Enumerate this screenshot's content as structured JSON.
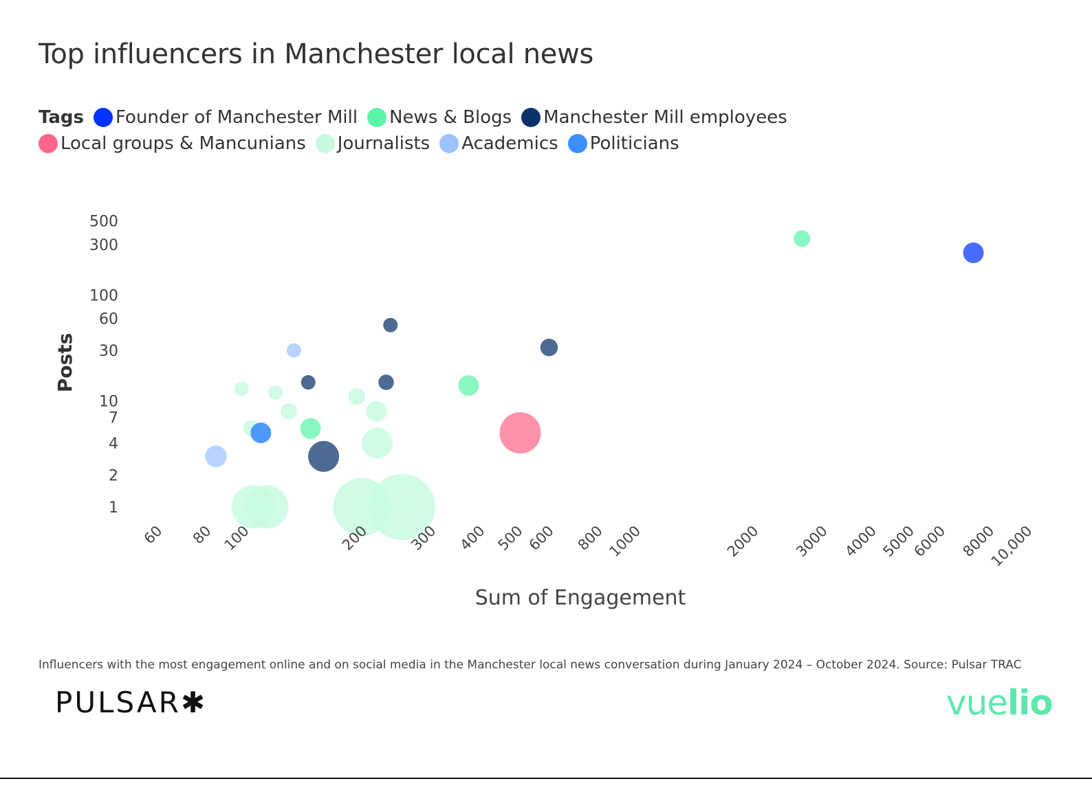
{
  "chart_data": {
    "type": "scatter",
    "title": "Top influencers in Manchester local news",
    "xlabel": "Sum of Engagement",
    "ylabel": "Posts",
    "x_scale": "log",
    "y_scale": "log",
    "xlim": [
      50,
      10000
    ],
    "ylim": [
      0.8,
      600
    ],
    "x_ticks": [
      60,
      80,
      100,
      200,
      300,
      400,
      500,
      600,
      800,
      1000,
      2000,
      3000,
      4000,
      5000,
      6000,
      8000,
      10000
    ],
    "x_tick_labels": [
      "60",
      "80",
      "100",
      "200",
      "300",
      "400",
      "500",
      "600",
      "800",
      "1000",
      "2000",
      "3000",
      "4000",
      "5000",
      "6000",
      "8000",
      "10,000"
    ],
    "y_ticks": [
      1,
      2,
      4,
      7,
      10,
      30,
      60,
      100,
      300,
      500
    ],
    "y_tick_labels": [
      "1",
      "2",
      "4",
      "7",
      "10",
      "30",
      "60",
      "100",
      "300",
      "500"
    ],
    "legend_title": "Tags",
    "legend_position": "top-left",
    "grid": false,
    "series": [
      {
        "name": "Founder of Manchester Mill",
        "color": "#0033ff",
        "points": [
          {
            "x": 7400,
            "y": 250,
            "size": 1.0
          }
        ]
      },
      {
        "name": "News & Blogs",
        "color": "#5cf5a8",
        "points": [
          {
            "x": 2700,
            "y": 340,
            "size": 0.8
          },
          {
            "x": 380,
            "y": 14,
            "size": 1.0
          },
          {
            "x": 150,
            "y": 5.5,
            "size": 1.0
          }
        ]
      },
      {
        "name": "Manchester Mill employees",
        "color": "#09316a",
        "points": [
          {
            "x": 240,
            "y": 52,
            "size": 0.7
          },
          {
            "x": 610,
            "y": 32,
            "size": 0.85
          },
          {
            "x": 148,
            "y": 15,
            "size": 0.7
          },
          {
            "x": 234,
            "y": 15,
            "size": 0.75
          },
          {
            "x": 162,
            "y": 3,
            "size": 1.5
          }
        ]
      },
      {
        "name": "Local groups & Mancunians",
        "color": "#ff6688",
        "points": [
          {
            "x": 515,
            "y": 5,
            "size": 2.0
          }
        ]
      },
      {
        "name": "Journalists",
        "color": "#c8fae0",
        "points": [
          {
            "x": 100,
            "y": 13,
            "size": 0.7
          },
          {
            "x": 122,
            "y": 12,
            "size": 0.7
          },
          {
            "x": 197,
            "y": 11,
            "size": 0.8
          },
          {
            "x": 132,
            "y": 8,
            "size": 0.8
          },
          {
            "x": 221,
            "y": 8,
            "size": 1.0
          },
          {
            "x": 106,
            "y": 5.5,
            "size": 0.8
          },
          {
            "x": 222,
            "y": 4,
            "size": 1.5
          },
          {
            "x": 107,
            "y": 1,
            "size": 2.1
          },
          {
            "x": 116,
            "y": 1,
            "size": 2.1
          },
          {
            "x": 203,
            "y": 1,
            "size": 2.8
          },
          {
            "x": 257,
            "y": 1,
            "size": 3.2
          }
        ]
      },
      {
        "name": "Academics",
        "color": "#9cc2ff",
        "points": [
          {
            "x": 136,
            "y": 30,
            "size": 0.7
          },
          {
            "x": 86,
            "y": 3,
            "size": 1.05
          }
        ]
      },
      {
        "name": "Politicians",
        "color": "#3d8eff",
        "points": [
          {
            "x": 112,
            "y": 5,
            "size": 1.0
          }
        ]
      }
    ]
  },
  "footnote": "Influencers with the most engagement online and on social media in the Manchester local news conversation during January 2024 – October 2024. Source: Pulsar TRAC",
  "logos": {
    "pulsar": "PULSAR✱",
    "vuelio_light": "vue",
    "vuelio_bold": "lio"
  }
}
